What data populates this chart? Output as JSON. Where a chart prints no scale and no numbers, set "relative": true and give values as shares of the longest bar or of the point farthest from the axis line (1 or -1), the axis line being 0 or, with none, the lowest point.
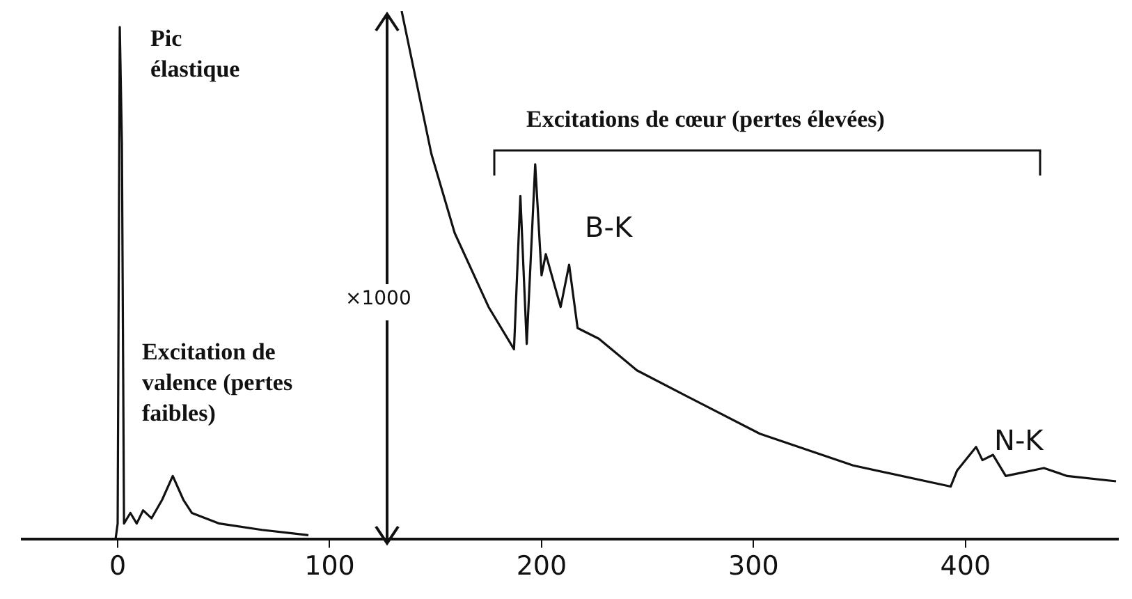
{
  "chart_data": {
    "type": "line",
    "relative": true,
    "xlim": [
      -45,
      472
    ],
    "xticks": [
      0,
      100,
      200,
      300,
      400
    ],
    "tick_labels": "x",
    "grid": false,
    "legend": false,
    "marker": "none",
    "line_style": "solid",
    "series": [
      {
        "color": "#111111",
        "x": [
          -1,
          0,
          1,
          2,
          3,
          6,
          9,
          12,
          16,
          21,
          26,
          31,
          35,
          48,
          68,
          90
        ],
        "values": [
          0,
          0.03,
          0.97,
          0.75,
          0.03,
          0.05,
          0.03,
          0.055,
          0.04,
          0.075,
          0.12,
          0.075,
          0.05,
          0.03,
          0.018,
          0.008
        ]
      },
      {
        "color": "#111111",
        "x": [
          134,
          148,
          159,
          175,
          187,
          190,
          193,
          197,
          200,
          202,
          209,
          213,
          217,
          227,
          245,
          269,
          303,
          347,
          393,
          396,
          405,
          408,
          413,
          419,
          437,
          448,
          471
        ],
        "values": [
          1.0,
          0.73,
          0.58,
          0.44,
          0.36,
          0.65,
          0.37,
          0.71,
          0.5,
          0.54,
          0.44,
          0.52,
          0.4,
          0.38,
          0.32,
          0.27,
          0.2,
          0.14,
          0.1,
          0.13,
          0.175,
          0.15,
          0.16,
          0.12,
          0.135,
          0.12,
          0.11
        ]
      }
    ],
    "annotations": [
      "Pic élastique",
      "Excitation de valence (pertes faibles)",
      "×1000",
      "Excitations de cœur (pertes élevées)",
      "B-K",
      "N-K"
    ]
  }
}
